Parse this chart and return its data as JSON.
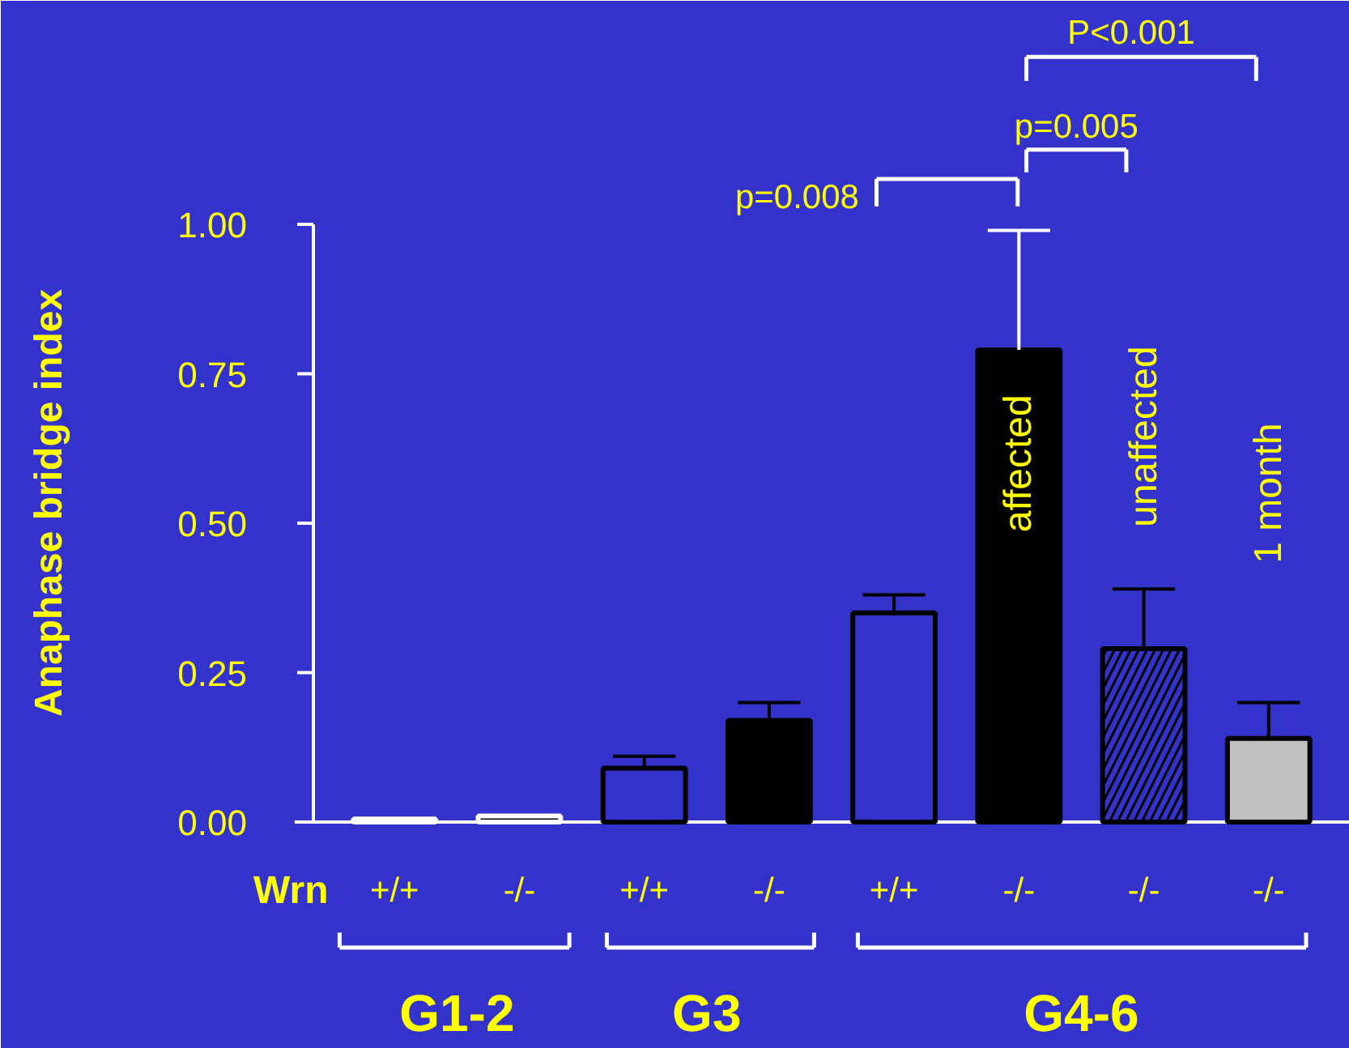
{
  "chart_data": {
    "type": "bar",
    "ylabel": "Anaphase bridge index",
    "xlabel": "Wrn",
    "categories": [
      "+/+",
      "-/-",
      "+/+",
      "-/-",
      "+/+",
      "-/-",
      "-/-",
      "-/-"
    ],
    "values": [
      0.005,
      0.01,
      0.09,
      0.17,
      0.35,
      0.79,
      0.29,
      0.14
    ],
    "errors": [
      null,
      null,
      [
        0.09,
        0.11
      ],
      [
        0.17,
        0.2
      ],
      [
        0.35,
        0.38
      ],
      [
        0.79,
        0.99
      ],
      [
        0.29,
        0.39
      ],
      [
        0.14,
        0.2
      ]
    ],
    "colors": [
      "#3333cc",
      "#000000",
      "#3333cc",
      "#000000",
      "#3333cc",
      "#000000",
      "#3333cc",
      "#c0c0c0"
    ],
    "ylim": [
      0,
      1.0
    ],
    "yticks": [
      {
        "value": 0,
        "label": "0.00"
      },
      {
        "value": 0.25,
        "label": "0.25"
      },
      {
        "value": 0.5,
        "label": "0.50"
      },
      {
        "value": 0.75,
        "label": "0.75"
      },
      {
        "value": 1.0,
        "label": "1.00"
      }
    ],
    "grid": false,
    "legend": false,
    "annotations": [
      "affected",
      "unaffected",
      "1 month",
      "G1-2",
      "G3",
      "G4-6",
      "p=0.008",
      "p=0.005",
      "P<0.001"
    ]
  }
}
